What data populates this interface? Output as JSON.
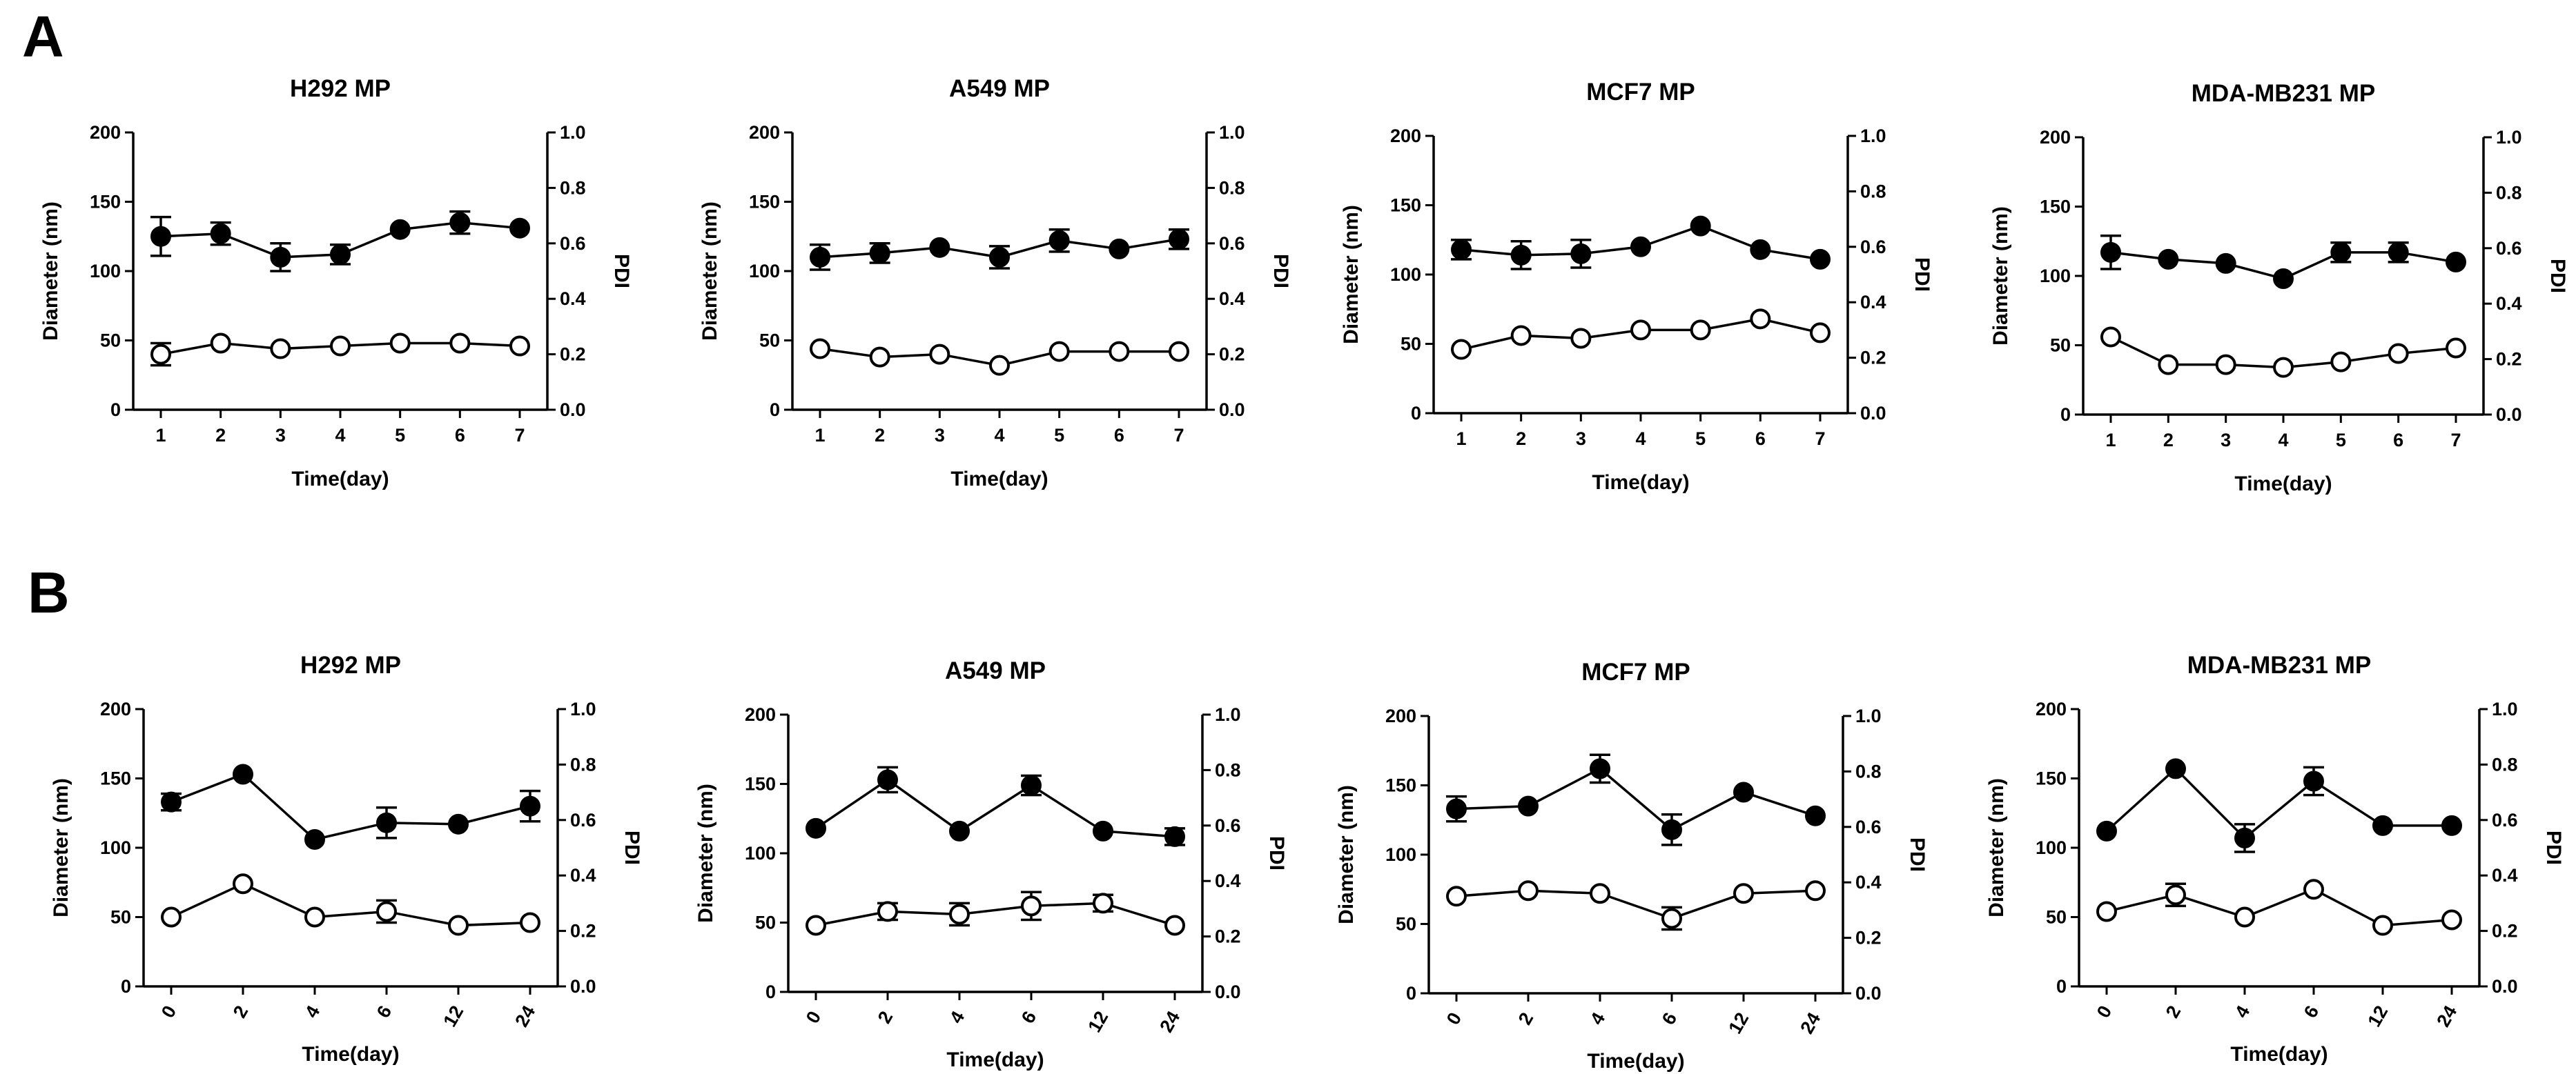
{
  "panel_letters": [
    "A",
    "B"
  ],
  "chart_data": [
    {
      "type": "line",
      "panel": "A",
      "title": "H292 MP",
      "xlabel": "Time(day)",
      "ylabel": "Diameter (nm)",
      "y2label": "PDI",
      "categories": [
        "1",
        "2",
        "3",
        "4",
        "5",
        "6",
        "7"
      ],
      "ylim": [
        0,
        200
      ],
      "yticks": [
        "0",
        "50",
        "100",
        "150",
        "200"
      ],
      "y2lim": [
        0,
        1.0
      ],
      "y2ticks": [
        "0.0",
        "0.2",
        "0.4",
        "0.6",
        "0.8",
        "1.0"
      ],
      "series": [
        {
          "name": "Diameter",
          "axis": "left",
          "marker": "filled-circle",
          "values": [
            125,
            127,
            110,
            112,
            130,
            135,
            131
          ],
          "errors": [
            14,
            8,
            10,
            7,
            0,
            8,
            0
          ]
        },
        {
          "name": "PDI",
          "axis": "right",
          "marker": "open-circle",
          "values": [
            0.2,
            0.24,
            0.22,
            0.23,
            0.24,
            0.24,
            0.23
          ],
          "errors": [
            0.04,
            0,
            0,
            0,
            0,
            0,
            0
          ]
        }
      ]
    },
    {
      "type": "line",
      "panel": "A",
      "title": "A549 MP",
      "xlabel": "Time(day)",
      "ylabel": "Diameter (nm)",
      "y2label": "PDI",
      "categories": [
        "1",
        "2",
        "3",
        "4",
        "5",
        "6",
        "7"
      ],
      "ylim": [
        0,
        200
      ],
      "yticks": [
        "0",
        "50",
        "100",
        "150",
        "200"
      ],
      "y2lim": [
        0,
        1.0
      ],
      "y2ticks": [
        "0.0",
        "0.2",
        "0.4",
        "0.6",
        "0.8",
        "1.0"
      ],
      "series": [
        {
          "name": "Diameter",
          "axis": "left",
          "marker": "filled-circle",
          "values": [
            110,
            113,
            117,
            110,
            122,
            116,
            123
          ],
          "errors": [
            9,
            7,
            0,
            8,
            8,
            0,
            7
          ]
        },
        {
          "name": "PDI",
          "axis": "right",
          "marker": "open-circle",
          "values": [
            0.22,
            0.19,
            0.2,
            0.16,
            0.21,
            0.21,
            0.21
          ],
          "errors": [
            0,
            0,
            0,
            0,
            0,
            0,
            0
          ]
        }
      ]
    },
    {
      "type": "line",
      "panel": "A",
      "title": "MCF7 MP",
      "xlabel": "Time(day)",
      "ylabel": "Diameter (nm)",
      "y2label": "PDI",
      "categories": [
        "1",
        "2",
        "3",
        "4",
        "5",
        "6",
        "7"
      ],
      "ylim": [
        0,
        200
      ],
      "yticks": [
        "0",
        "50",
        "100",
        "150",
        "200"
      ],
      "y2lim": [
        0,
        1.0
      ],
      "y2ticks": [
        "0.0",
        "0.2",
        "0.4",
        "0.6",
        "0.8",
        "1.0"
      ],
      "series": [
        {
          "name": "Diameter",
          "axis": "left",
          "marker": "filled-circle",
          "values": [
            118,
            114,
            115,
            120,
            135,
            118,
            111
          ],
          "errors": [
            7,
            10,
            10,
            0,
            0,
            0,
            0
          ]
        },
        {
          "name": "PDI",
          "axis": "right",
          "marker": "open-circle",
          "values": [
            0.23,
            0.28,
            0.27,
            0.3,
            0.3,
            0.34,
            0.29
          ],
          "errors": [
            0,
            0,
            0,
            0,
            0,
            0,
            0
          ]
        }
      ]
    },
    {
      "type": "line",
      "panel": "A",
      "title": "MDA-MB231 MP",
      "xlabel": "Time(day)",
      "ylabel": "Diameter (nm)",
      "y2label": "PDI",
      "categories": [
        "1",
        "2",
        "3",
        "4",
        "5",
        "6",
        "7"
      ],
      "ylim": [
        0,
        200
      ],
      "yticks": [
        "0",
        "50",
        "100",
        "150",
        "200"
      ],
      "y2lim": [
        0,
        1.0
      ],
      "y2ticks": [
        "0.0",
        "0.2",
        "0.4",
        "0.6",
        "0.8",
        "1.0"
      ],
      "series": [
        {
          "name": "Diameter",
          "axis": "left",
          "marker": "filled-circle",
          "values": [
            117,
            112,
            109,
            98,
            117,
            117,
            110
          ],
          "errors": [
            12,
            0,
            0,
            0,
            7,
            7,
            0
          ]
        },
        {
          "name": "PDI",
          "axis": "right",
          "marker": "open-circle",
          "values": [
            0.28,
            0.18,
            0.18,
            0.17,
            0.19,
            0.22,
            0.24
          ],
          "errors": [
            0,
            0,
            0,
            0,
            0,
            0,
            0
          ]
        }
      ]
    },
    {
      "type": "line",
      "panel": "B",
      "title": "H292 MP",
      "xlabel": "Time(day)",
      "ylabel": "Diameter (nm)",
      "y2label": "PDI",
      "categories": [
        "0",
        "2",
        "4",
        "6",
        "12",
        "24"
      ],
      "rotated_ticks": true,
      "ylim": [
        0,
        200
      ],
      "yticks": [
        "0",
        "50",
        "100",
        "150",
        "200"
      ],
      "y2lim": [
        0,
        1.0
      ],
      "y2ticks": [
        "0.0",
        "0.2",
        "0.4",
        "0.6",
        "0.8",
        "1.0"
      ],
      "series": [
        {
          "name": "Diameter",
          "axis": "left",
          "marker": "filled-circle",
          "values": [
            133,
            153,
            106,
            118,
            117,
            130
          ],
          "errors": [
            6,
            0,
            0,
            11,
            0,
            11
          ]
        },
        {
          "name": "PDI",
          "axis": "right",
          "marker": "open-circle",
          "values": [
            0.25,
            0.37,
            0.25,
            0.27,
            0.22,
            0.23
          ],
          "errors": [
            0,
            0,
            0,
            0.04,
            0,
            0
          ]
        }
      ]
    },
    {
      "type": "line",
      "panel": "B",
      "title": "A549 MP",
      "xlabel": "Time(day)",
      "ylabel": "Diameter (nm)",
      "y2label": "PDI",
      "categories": [
        "0",
        "2",
        "4",
        "6",
        "12",
        "24"
      ],
      "rotated_ticks": true,
      "ylim": [
        0,
        200
      ],
      "yticks": [
        "0",
        "50",
        "100",
        "150",
        "200"
      ],
      "y2lim": [
        0,
        1.0
      ],
      "y2ticks": [
        "0.0",
        "0.2",
        "0.4",
        "0.6",
        "0.8",
        "1.0"
      ],
      "series": [
        {
          "name": "Diameter",
          "axis": "left",
          "marker": "filled-circle",
          "values": [
            118,
            153,
            116,
            149,
            116,
            112
          ],
          "errors": [
            0,
            9,
            0,
            7,
            0,
            6
          ]
        },
        {
          "name": "PDI",
          "axis": "right",
          "marker": "open-circle",
          "values": [
            0.24,
            0.29,
            0.28,
            0.31,
            0.32,
            0.24
          ],
          "errors": [
            0,
            0.03,
            0.04,
            0.05,
            0.03,
            0
          ]
        }
      ]
    },
    {
      "type": "line",
      "panel": "B",
      "title": "MCF7 MP",
      "xlabel": "Time(day)",
      "ylabel": "Diameter (nm)",
      "y2label": "PDI",
      "categories": [
        "0",
        "2",
        "4",
        "6",
        "12",
        "24"
      ],
      "rotated_ticks": true,
      "ylim": [
        0,
        200
      ],
      "yticks": [
        "0",
        "50",
        "100",
        "150",
        "200"
      ],
      "y2lim": [
        0,
        1.0
      ],
      "y2ticks": [
        "0.0",
        "0.2",
        "0.4",
        "0.6",
        "0.8",
        "1.0"
      ],
      "series": [
        {
          "name": "Diameter",
          "axis": "left",
          "marker": "filled-circle",
          "values": [
            133,
            135,
            162,
            118,
            145,
            128
          ],
          "errors": [
            9,
            0,
            10,
            11,
            0,
            0
          ]
        },
        {
          "name": "PDI",
          "axis": "right",
          "marker": "open-circle",
          "values": [
            0.35,
            0.37,
            0.36,
            0.27,
            0.36,
            0.37
          ],
          "errors": [
            0,
            0,
            0,
            0.04,
            0,
            0
          ]
        }
      ]
    },
    {
      "type": "line",
      "panel": "B",
      "title": "MDA-MB231 MP",
      "xlabel": "Time(day)",
      "ylabel": "Diameter (nm)",
      "y2label": "PDI",
      "categories": [
        "0",
        "2",
        "4",
        "6",
        "12",
        "24"
      ],
      "rotated_ticks": true,
      "ylim": [
        0,
        200
      ],
      "yticks": [
        "0",
        "50",
        "100",
        "150",
        "200"
      ],
      "y2lim": [
        0,
        1.0
      ],
      "y2ticks": [
        "0.0",
        "0.2",
        "0.4",
        "0.6",
        "0.8",
        "1.0"
      ],
      "series": [
        {
          "name": "Diameter",
          "axis": "left",
          "marker": "filled-circle",
          "values": [
            112,
            157,
            107,
            148,
            116,
            116
          ],
          "errors": [
            0,
            0,
            10,
            10,
            0,
            0
          ]
        },
        {
          "name": "PDI",
          "axis": "right",
          "marker": "open-circle",
          "values": [
            0.27,
            0.33,
            0.25,
            0.35,
            0.22,
            0.24
          ],
          "errors": [
            0,
            0.04,
            0,
            0,
            0,
            0
          ]
        }
      ]
    }
  ]
}
